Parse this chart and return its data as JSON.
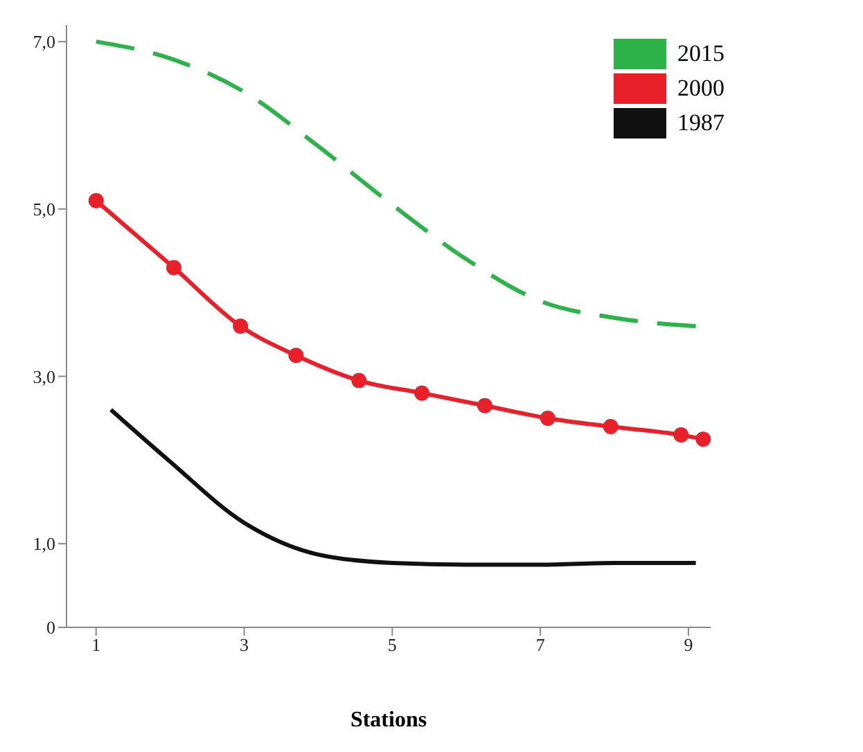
{
  "chart_data": {
    "type": "line",
    "xlabel": "Stations",
    "xlim": [
      0.6,
      9.3
    ],
    "xticks": [
      1,
      3,
      5,
      7,
      9
    ],
    "ylim": [
      0,
      7.2
    ],
    "yticks": [
      {
        "value": 0,
        "label": "0"
      },
      {
        "value": 1,
        "label": "1,0"
      },
      {
        "value": 3,
        "label": "3,0"
      },
      {
        "value": 5,
        "label": "5,0"
      },
      {
        "value": 7,
        "label": "7,0"
      }
    ],
    "grid": false,
    "legend": "top right",
    "series": [
      {
        "name": "2015",
        "color": "#2eb24a",
        "line_style": "dashed",
        "marker": "none",
        "x": [
          1,
          2,
          3,
          4,
          5,
          6,
          7,
          8,
          9.1
        ],
        "values": [
          7.0,
          6.8,
          6.4,
          5.75,
          5.05,
          4.4,
          3.9,
          3.7,
          3.6
        ]
      },
      {
        "name": "2000",
        "color": "#e8202a",
        "line_style": "solid",
        "marker": "circle",
        "x": [
          1,
          2.05,
          2.95,
          3.7,
          4.55,
          5.4,
          6.25,
          7.1,
          7.95,
          8.9,
          9.2
        ],
        "values": [
          5.1,
          4.3,
          3.6,
          3.25,
          2.95,
          2.8,
          2.65,
          2.5,
          2.4,
          2.3,
          2.25
        ]
      },
      {
        "name": "1987",
        "color": "#111111",
        "line_style": "solid",
        "marker": "none",
        "x": [
          1.2,
          2,
          3,
          4,
          5,
          6,
          7,
          8,
          9.1
        ],
        "values": [
          2.6,
          1.98,
          1.25,
          0.87,
          0.77,
          0.75,
          0.75,
          0.77,
          0.77
        ]
      }
    ]
  }
}
